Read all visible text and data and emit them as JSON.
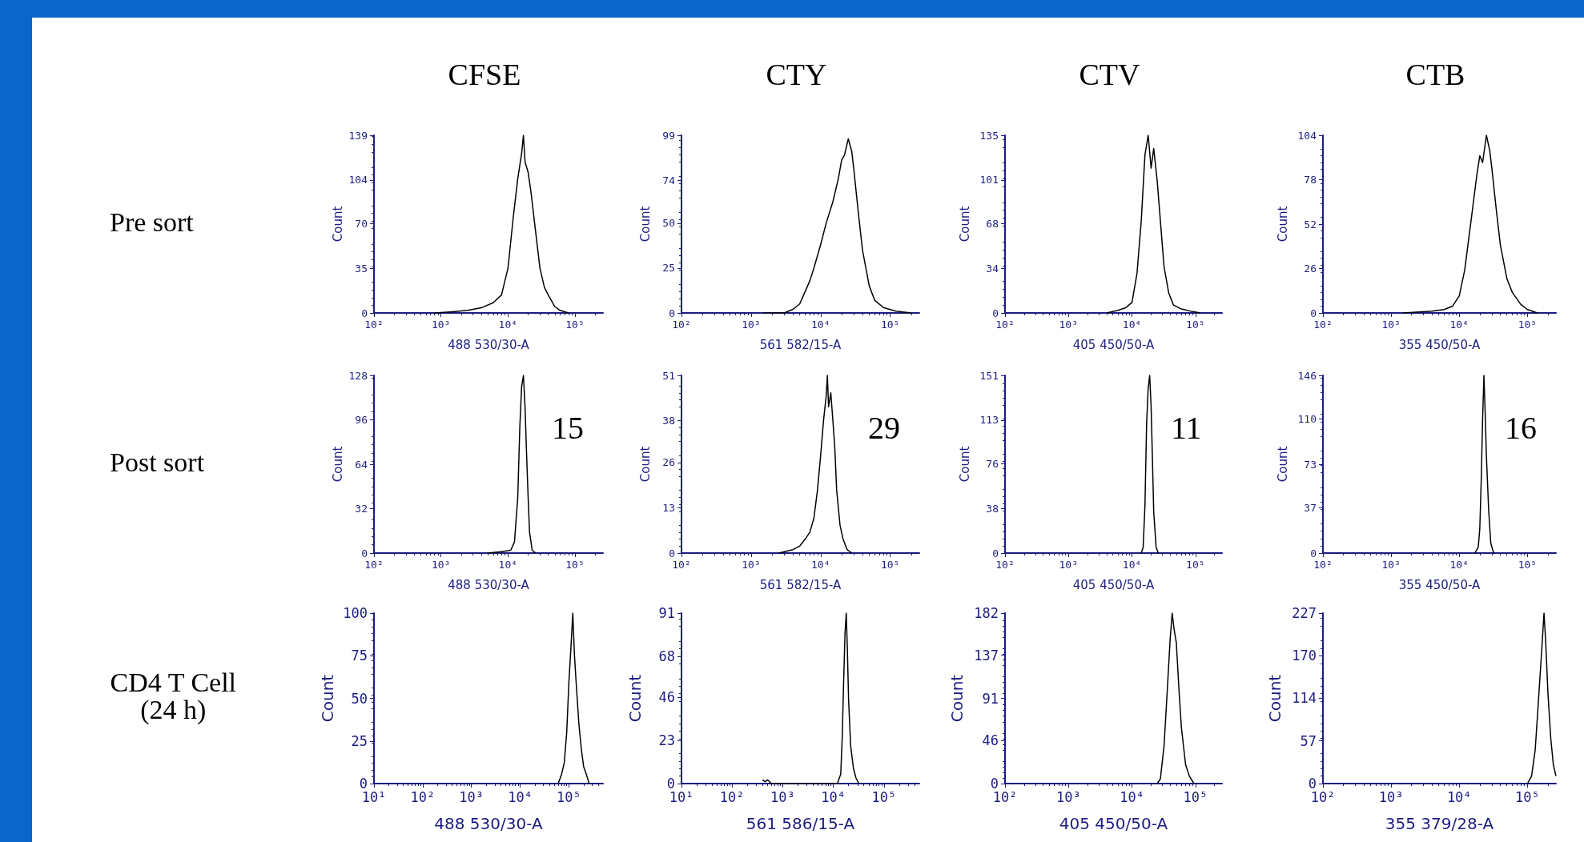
{
  "chart_data": [
    {
      "type": "line",
      "title": "CFSE",
      "annotations": [
        "Pre sort"
      ],
      "xlabel": "488 530/30-A",
      "ylabel": "Count",
      "log": "x",
      "marker": "none",
      "line_style": "solid",
      "xlim": [
        100,
        262144
      ],
      "xticks": [
        {
          "value": 100,
          "label": "10²"
        },
        {
          "value": 1000,
          "label": "10³"
        },
        {
          "value": 10000,
          "label": "10⁴"
        },
        {
          "value": 100000,
          "label": "10⁵"
        }
      ],
      "ylim": [
        0,
        139
      ],
      "yticks": [
        0,
        35,
        70,
        104,
        139
      ],
      "series": [
        {
          "color": "#000000",
          "x": [
            800,
            1500,
            2500,
            4000,
            6000,
            8000,
            10000,
            12000,
            14000,
            16000,
            17000,
            18000,
            20000,
            22000,
            25000,
            30000,
            35000,
            40000,
            50000,
            60000,
            80000
          ],
          "values": [
            0,
            1,
            2,
            4,
            8,
            14,
            35,
            75,
            105,
            125,
            139,
            118,
            110,
            95,
            70,
            35,
            20,
            14,
            5,
            2,
            0
          ]
        }
      ]
    },
    {
      "type": "line",
      "title": "CTY",
      "xlabel": "561 582/15-A",
      "ylabel": "Count",
      "log": "x",
      "marker": "none",
      "line_style": "solid",
      "xlim": [
        100,
        262144
      ],
      "xticks": [
        {
          "value": 100,
          "label": "10²"
        },
        {
          "value": 1000,
          "label": "10³"
        },
        {
          "value": 10000,
          "label": "10⁴"
        },
        {
          "value": 100000,
          "label": "10⁵"
        }
      ],
      "ylim": [
        0,
        99
      ],
      "yticks": [
        0,
        25,
        50,
        74,
        99
      ],
      "series": [
        {
          "color": "#000000",
          "x": [
            1500,
            3000,
            4000,
            5000,
            6000,
            7000,
            8000,
            10000,
            12000,
            15000,
            18000,
            20000,
            22000,
            25000,
            28000,
            30000,
            35000,
            40000,
            50000,
            60000,
            80000,
            120000,
            200000
          ],
          "values": [
            0,
            0,
            2,
            5,
            12,
            18,
            25,
            38,
            50,
            62,
            75,
            85,
            88,
            97,
            90,
            80,
            55,
            35,
            15,
            7,
            3,
            1,
            0
          ]
        }
      ]
    },
    {
      "type": "line",
      "title": "CTV",
      "xlabel": "405 450/50-A",
      "ylabel": "Count",
      "log": "x",
      "marker": "none",
      "line_style": "solid",
      "xlim": [
        100,
        262144
      ],
      "xticks": [
        {
          "value": 100,
          "label": "10²"
        },
        {
          "value": 1000,
          "label": "10³"
        },
        {
          "value": 10000,
          "label": "10⁴"
        },
        {
          "value": 100000,
          "label": "10⁵"
        }
      ],
      "ylim": [
        0,
        135
      ],
      "yticks": [
        0,
        34,
        68,
        101,
        135
      ],
      "series": [
        {
          "color": "#000000",
          "x": [
            4000,
            6000,
            8000,
            10000,
            12000,
            14000,
            16000,
            18000,
            20000,
            22000,
            25000,
            28000,
            32000,
            38000,
            45000,
            60000,
            90000,
            120000
          ],
          "values": [
            0,
            2,
            4,
            8,
            30,
            70,
            120,
            135,
            110,
            125,
            100,
            70,
            35,
            15,
            6,
            3,
            1,
            0
          ]
        }
      ]
    },
    {
      "type": "line",
      "title": "CTB",
      "xlabel": "355 450/50-A",
      "ylabel": "Count",
      "log": "x",
      "marker": "none",
      "line_style": "solid",
      "xlim": [
        100,
        262144
      ],
      "xticks": [
        {
          "value": 100,
          "label": "10²"
        },
        {
          "value": 1000,
          "label": "10³"
        },
        {
          "value": 10000,
          "label": "10⁴"
        },
        {
          "value": 100000,
          "label": "10⁵"
        }
      ],
      "ylim": [
        0,
        104
      ],
      "yticks": [
        0,
        26,
        52,
        78,
        104
      ],
      "series": [
        {
          "color": "#000000",
          "x": [
            1500,
            4000,
            6000,
            8000,
            10000,
            12000,
            15000,
            18000,
            20000,
            22000,
            25000,
            28000,
            30000,
            35000,
            40000,
            50000,
            60000,
            80000,
            100000,
            140000
          ],
          "values": [
            0,
            1,
            2,
            4,
            10,
            25,
            55,
            80,
            92,
            88,
            104,
            95,
            85,
            60,
            40,
            20,
            12,
            5,
            2,
            0
          ]
        }
      ]
    },
    {
      "type": "line",
      "annotations": [
        "Post sort",
        "15"
      ],
      "xlabel": "488 530/30-A",
      "ylabel": "Count",
      "log": "x",
      "marker": "none",
      "line_style": "solid",
      "xlim": [
        100,
        262144
      ],
      "xticks": [
        {
          "value": 100,
          "label": "10²"
        },
        {
          "value": 1000,
          "label": "10³"
        },
        {
          "value": 10000,
          "label": "10⁴"
        },
        {
          "value": 100000,
          "label": "10⁵"
        }
      ],
      "ylim": [
        0,
        128
      ],
      "yticks": [
        0,
        32,
        64,
        96,
        128
      ],
      "series": [
        {
          "color": "#000000",
          "x": [
            5000,
            8000,
            11000,
            12500,
            14000,
            15000,
            16000,
            17000,
            18000,
            19000,
            20000,
            21000,
            23000,
            26000
          ],
          "values": [
            0,
            1,
            2,
            8,
            40,
            90,
            120,
            128,
            105,
            70,
            40,
            15,
            2,
            0
          ]
        }
      ]
    },
    {
      "type": "line",
      "annotations": [
        "29"
      ],
      "xlabel": "561 582/15-A",
      "ylabel": "Count",
      "log": "x",
      "marker": "none",
      "line_style": "solid",
      "xlim": [
        100,
        262144
      ],
      "xticks": [
        {
          "value": 100,
          "label": "10²"
        },
        {
          "value": 1000,
          "label": "10³"
        },
        {
          "value": 10000,
          "label": "10⁴"
        },
        {
          "value": 100000,
          "label": "10⁵"
        }
      ],
      "ylim": [
        0,
        51
      ],
      "yticks": [
        0,
        13,
        26,
        38,
        51
      ],
      "series": [
        {
          "color": "#000000",
          "x": [
            2500,
            4000,
            5000,
            6000,
            7000,
            8000,
            9000,
            10000,
            11000,
            12000,
            12500,
            13000,
            14000,
            15000,
            16000,
            17000,
            19000,
            21000,
            24000,
            28000
          ],
          "values": [
            0,
            1,
            2,
            4,
            6,
            10,
            18,
            28,
            38,
            45,
            51,
            42,
            46,
            38,
            30,
            18,
            8,
            4,
            1,
            0
          ]
        }
      ]
    },
    {
      "type": "line",
      "annotations": [
        "11"
      ],
      "xlabel": "405 450/50-A",
      "ylabel": "Count",
      "log": "x",
      "marker": "none",
      "line_style": "solid",
      "xlim": [
        100,
        262144
      ],
      "xticks": [
        {
          "value": 100,
          "label": "10²"
        },
        {
          "value": 1000,
          "label": "10³"
        },
        {
          "value": 10000,
          "label": "10⁴"
        },
        {
          "value": 100000,
          "label": "10⁵"
        }
      ],
      "ylim": [
        0,
        151
      ],
      "yticks": [
        0,
        38,
        76,
        113,
        151
      ],
      "series": [
        {
          "color": "#000000",
          "x": [
            14000,
            15000,
            16000,
            17000,
            18000,
            19000,
            20000,
            21000,
            22000,
            24000,
            26000
          ],
          "values": [
            0,
            5,
            40,
            110,
            140,
            151,
            125,
            80,
            35,
            5,
            0
          ]
        }
      ]
    },
    {
      "type": "line",
      "annotations": [
        "16"
      ],
      "xlabel": "355 450/50-A",
      "ylabel": "Count",
      "log": "x",
      "marker": "none",
      "line_style": "solid",
      "xlim": [
        100,
        262144
      ],
      "xticks": [
        {
          "value": 100,
          "label": "10²"
        },
        {
          "value": 1000,
          "label": "10³"
        },
        {
          "value": 10000,
          "label": "10⁴"
        },
        {
          "value": 100000,
          "label": "10⁵"
        }
      ],
      "ylim": [
        0,
        146
      ],
      "yticks": [
        0,
        37,
        73,
        110,
        146
      ],
      "series": [
        {
          "color": "#000000",
          "x": [
            17000,
            19000,
            20000,
            21000,
            22000,
            23000,
            24000,
            25000,
            27000,
            29000,
            32000
          ],
          "values": [
            0,
            5,
            20,
            60,
            110,
            146,
            115,
            80,
            35,
            8,
            0
          ]
        }
      ]
    },
    {
      "type": "line",
      "annotations": [
        "CD4 T Cell\n(24 h)"
      ],
      "xlabel": "488 530/30-A",
      "ylabel": "Count",
      "log": "x",
      "marker": "none",
      "line_style": "solid",
      "xlim": [
        10,
        500000
      ],
      "xticks": [
        {
          "value": 10,
          "label": "10¹"
        },
        {
          "value": 100,
          "label": "10²"
        },
        {
          "value": 1000,
          "label": "10³"
        },
        {
          "value": 10000,
          "label": "10⁴"
        },
        {
          "value": 100000,
          "label": "10⁵"
        }
      ],
      "ylim": [
        0,
        100
      ],
      "yticks": [
        0,
        25,
        50,
        75,
        100
      ],
      "series": [
        {
          "color": "#000000",
          "x": [
            60000,
            70000,
            80000,
            90000,
            100000,
            110000,
            120000,
            130000,
            140000,
            160000,
            180000,
            200000,
            230000,
            260000
          ],
          "values": [
            0,
            5,
            12,
            30,
            60,
            80,
            100,
            75,
            60,
            35,
            20,
            10,
            5,
            0
          ]
        }
      ]
    },
    {
      "type": "line",
      "xlabel": "561 586/15-A",
      "ylabel": "Count",
      "log": "x",
      "marker": "none",
      "line_style": "solid",
      "xlim": [
        10,
        500000
      ],
      "xticks": [
        {
          "value": 10,
          "label": "10¹"
        },
        {
          "value": 100,
          "label": "10²"
        },
        {
          "value": 1000,
          "label": "10³"
        },
        {
          "value": 10000,
          "label": "10⁴"
        },
        {
          "value": 100000,
          "label": "10⁵"
        }
      ],
      "ylim": [
        0,
        91
      ],
      "yticks": [
        0,
        23,
        46,
        68,
        91
      ],
      "series": [
        {
          "color": "#000000",
          "x": [
            400,
            450,
            500,
            600,
            12000,
            14000,
            15000,
            16000,
            17000,
            18000,
            19000,
            20000,
            22000,
            25000,
            28000,
            32000
          ],
          "values": [
            2,
            1,
            2,
            0,
            0,
            5,
            25,
            55,
            80,
            91,
            70,
            45,
            20,
            8,
            3,
            0
          ]
        }
      ]
    },
    {
      "type": "line",
      "xlabel": "405 450/50-A",
      "ylabel": "Count",
      "log": "x",
      "marker": "none",
      "line_style": "solid",
      "xlim": [
        100,
        262144
      ],
      "xticks": [
        {
          "value": 100,
          "label": "10²"
        },
        {
          "value": 1000,
          "label": "10³"
        },
        {
          "value": 10000,
          "label": "10⁴"
        },
        {
          "value": 100000,
          "label": "10⁵"
        }
      ],
      "ylim": [
        0,
        182
      ],
      "yticks": [
        0,
        46,
        91,
        137,
        182
      ],
      "series": [
        {
          "color": "#000000",
          "x": [
            25000,
            28000,
            32000,
            36000,
            40000,
            43000,
            46000,
            50000,
            55000,
            60000,
            70000,
            80000,
            95000
          ],
          "values": [
            0,
            5,
            40,
            100,
            155,
            182,
            165,
            150,
            100,
            60,
            20,
            8,
            0
          ]
        }
      ]
    },
    {
      "type": "line",
      "xlabel": "355 379/28-A",
      "ylabel": "Count",
      "log": "x",
      "marker": "none",
      "line_style": "solid",
      "xlim": [
        100,
        262144
      ],
      "xticks": [
        {
          "value": 100,
          "label": "10²"
        },
        {
          "value": 1000,
          "label": "10³"
        },
        {
          "value": 10000,
          "label": "10⁴"
        },
        {
          "value": 100000,
          "label": "10⁵"
        }
      ],
      "ylim": [
        0,
        227
      ],
      "yticks": [
        0,
        57,
        114,
        170,
        227
      ],
      "series": [
        {
          "color": "#000000",
          "x": [
            100000,
            115000,
            130000,
            145000,
            160000,
            175000,
            185000,
            200000,
            220000,
            240000,
            262000
          ],
          "values": [
            0,
            10,
            45,
            110,
            170,
            227,
            190,
            120,
            60,
            25,
            10
          ]
        }
      ]
    }
  ]
}
